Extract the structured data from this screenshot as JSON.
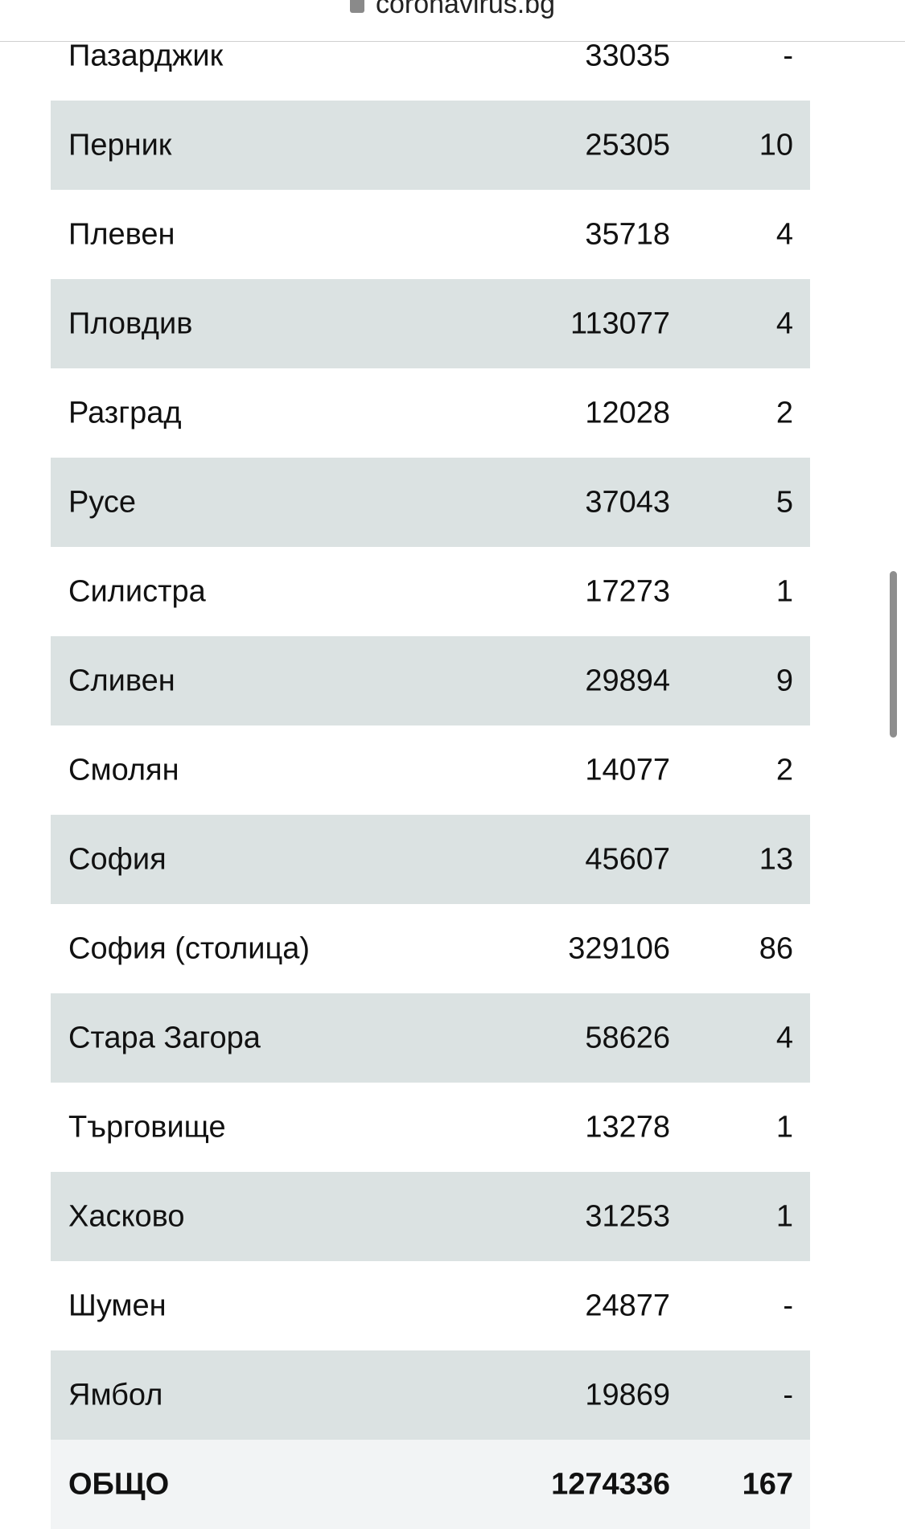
{
  "header": {
    "url": "coronavirus.bg"
  },
  "table": {
    "rows": [
      [
        "Пазарджик",
        33035,
        "-"
      ],
      [
        "Перник",
        25305,
        10
      ],
      [
        "Плевен",
        35718,
        4
      ],
      [
        "Пловдив",
        113077,
        4
      ],
      [
        "Разград",
        12028,
        2
      ],
      [
        "Русе",
        37043,
        5
      ],
      [
        "Силистра",
        17273,
        1
      ],
      [
        "Сливен",
        29894,
        9
      ],
      [
        "Смолян",
        14077,
        2
      ],
      [
        "София",
        45607,
        13
      ],
      [
        "София (столица)",
        329106,
        86
      ],
      [
        "Стара Загора",
        58626,
        4
      ],
      [
        "Търговище",
        13278,
        1
      ],
      [
        "Хасково",
        31253,
        1
      ],
      [
        "Шумен",
        24877,
        "-"
      ],
      [
        "Ямбол",
        19869,
        "-"
      ]
    ],
    "total": [
      "ОБЩО",
      1274336,
      167
    ]
  }
}
